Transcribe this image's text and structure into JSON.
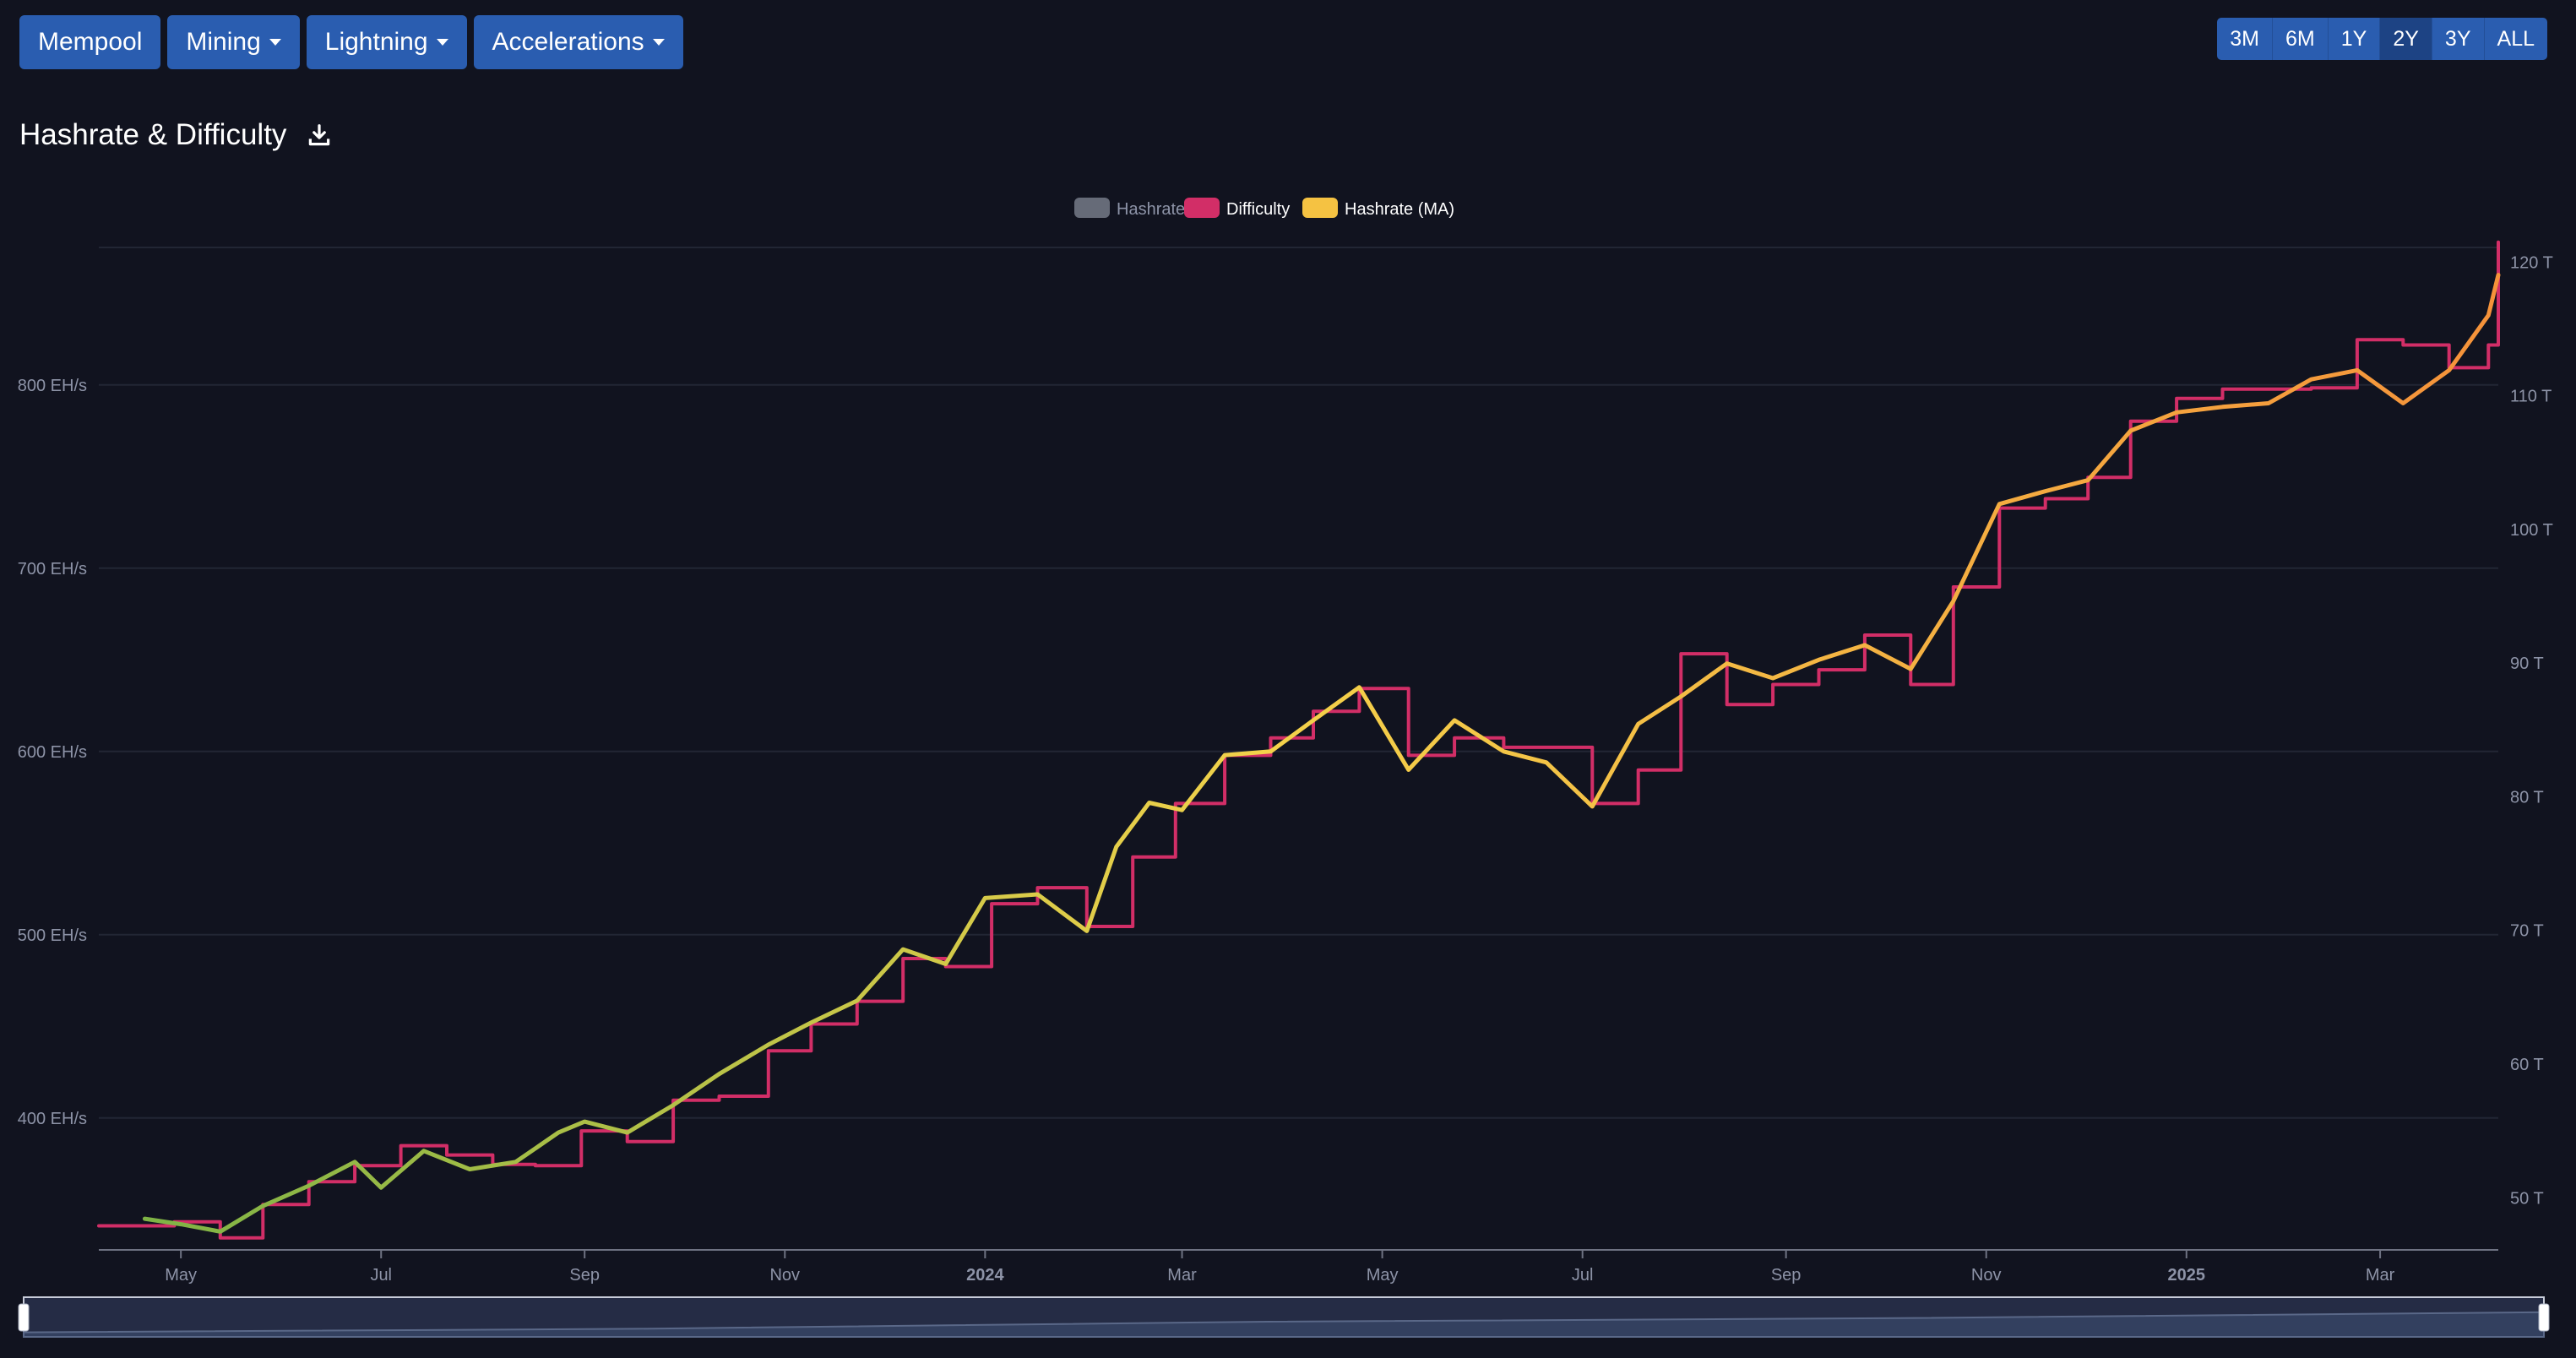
{
  "nav": {
    "mempool": "Mempool",
    "mining": "Mining",
    "lightning": "Lightning",
    "accelerations": "Accelerations"
  },
  "ranges": [
    "3M",
    "6M",
    "1Y",
    "2Y",
    "3Y",
    "ALL"
  ],
  "active_range": "2Y",
  "title": "Hashrate & Difficulty",
  "icons": {
    "download": "download-icon"
  },
  "colors": {
    "hashrate": "#666b78",
    "difficulty": "#d22e67",
    "ma_start": "#7eb345",
    "ma_mid": "#f4d24a",
    "ma_end": "#f5923a",
    "grid": "#222634",
    "button": "#2a5db0"
  },
  "chart_data": {
    "type": "line",
    "legend": {
      "position": "top-center",
      "entries": [
        {
          "name": "Hashrate",
          "visible": false
        },
        {
          "name": "Difficulty",
          "visible": true
        },
        {
          "name": "Hashrate (MA)",
          "visible": true
        }
      ]
    },
    "x_axis": {
      "start": "2023-04-06",
      "end": "2025-04-06",
      "ticks": [
        {
          "date": "2023-05-01",
          "label": "May",
          "bold": false
        },
        {
          "date": "2023-07-01",
          "label": "Jul",
          "bold": false
        },
        {
          "date": "2023-09-01",
          "label": "Sep",
          "bold": false
        },
        {
          "date": "2023-11-01",
          "label": "Nov",
          "bold": false
        },
        {
          "date": "2024-01-01",
          "label": "2024",
          "bold": true
        },
        {
          "date": "2024-03-01",
          "label": "Mar",
          "bold": false
        },
        {
          "date": "2024-05-01",
          "label": "May",
          "bold": false
        },
        {
          "date": "2024-07-01",
          "label": "Jul",
          "bold": false
        },
        {
          "date": "2024-09-01",
          "label": "Sep",
          "bold": false
        },
        {
          "date": "2024-11-01",
          "label": "Nov",
          "bold": false
        },
        {
          "date": "2025-01-01",
          "label": "2025",
          "bold": true
        },
        {
          "date": "2025-03-01",
          "label": "Mar",
          "bold": false
        }
      ]
    },
    "y_left": {
      "unit": "EH/s",
      "range": [
        328,
        875
      ],
      "ticks": [
        {
          "value": 400,
          "label": "400 EH/s"
        },
        {
          "value": 500,
          "label": "500 EH/s"
        },
        {
          "value": 600,
          "label": "600 EH/s"
        },
        {
          "value": 700,
          "label": "700 EH/s"
        },
        {
          "value": 800,
          "label": "800 EH/s"
        }
      ]
    },
    "y_right": {
      "unit": "T",
      "range": [
        46.1,
        121.1
      ],
      "ticks": [
        {
          "value": 50,
          "label": "50 T"
        },
        {
          "value": 60,
          "label": "60 T"
        },
        {
          "value": 70,
          "label": "70 T"
        },
        {
          "value": 80,
          "label": "80 T"
        },
        {
          "value": 90,
          "label": "90 T"
        },
        {
          "value": 100,
          "label": "100 T"
        },
        {
          "value": 110,
          "label": "110 T"
        },
        {
          "value": 120,
          "label": "120 T"
        }
      ]
    },
    "series": [
      {
        "name": "Difficulty",
        "axis": "right",
        "step": true,
        "points": [
          [
            "2023-04-06",
            47.9
          ],
          [
            "2023-04-29",
            48.2
          ],
          [
            "2023-05-13",
            47.0
          ],
          [
            "2023-05-26",
            49.5
          ],
          [
            "2023-06-09",
            51.2
          ],
          [
            "2023-06-23",
            52.4
          ],
          [
            "2023-07-07",
            53.9
          ],
          [
            "2023-07-21",
            53.2
          ],
          [
            "2023-08-04",
            52.5
          ],
          [
            "2023-08-17",
            52.4
          ],
          [
            "2023-08-31",
            55.0
          ],
          [
            "2023-09-14",
            54.2
          ],
          [
            "2023-09-28",
            57.3
          ],
          [
            "2023-10-12",
            57.6
          ],
          [
            "2023-10-27",
            61.0
          ],
          [
            "2023-11-09",
            63.0
          ],
          [
            "2023-11-23",
            64.7
          ],
          [
            "2023-12-07",
            67.9
          ],
          [
            "2023-12-20",
            67.3
          ],
          [
            "2024-01-03",
            72.0
          ],
          [
            "2024-01-17",
            73.2
          ],
          [
            "2024-02-01",
            70.3
          ],
          [
            "2024-02-15",
            75.5
          ],
          [
            "2024-02-28",
            79.5
          ],
          [
            "2024-03-14",
            83.1
          ],
          [
            "2024-03-28",
            84.4
          ],
          [
            "2024-04-10",
            86.4
          ],
          [
            "2024-04-24",
            88.1
          ],
          [
            "2024-05-09",
            83.1
          ],
          [
            "2024-05-23",
            84.4
          ],
          [
            "2024-06-07",
            83.7
          ],
          [
            "2024-06-20",
            83.7
          ],
          [
            "2024-07-04",
            79.5
          ],
          [
            "2024-07-18",
            82.0
          ],
          [
            "2024-07-31",
            90.7
          ],
          [
            "2024-08-14",
            86.9
          ],
          [
            "2024-08-28",
            88.4
          ],
          [
            "2024-09-11",
            89.5
          ],
          [
            "2024-09-25",
            92.1
          ],
          [
            "2024-10-09",
            88.4
          ],
          [
            "2024-10-22",
            95.7
          ],
          [
            "2024-11-05",
            101.6
          ],
          [
            "2024-11-19",
            102.3
          ],
          [
            "2024-12-02",
            103.9
          ],
          [
            "2024-12-15",
            108.1
          ],
          [
            "2024-12-29",
            109.8
          ],
          [
            "2025-01-12",
            110.5
          ],
          [
            "2025-01-26",
            110.5
          ],
          [
            "2025-02-08",
            110.6
          ],
          [
            "2025-02-22",
            114.2
          ],
          [
            "2025-03-08",
            113.8
          ],
          [
            "2025-03-22",
            112.1
          ],
          [
            "2025-04-03",
            113.8
          ],
          [
            "2025-04-06",
            121.5
          ]
        ]
      },
      {
        "name": "Hashrate (MA)",
        "axis": "left",
        "gradient": true,
        "points": [
          [
            "2023-04-20",
            345
          ],
          [
            "2023-05-01",
            342
          ],
          [
            "2023-05-13",
            338
          ],
          [
            "2023-05-26",
            352
          ],
          [
            "2023-06-09",
            363
          ],
          [
            "2023-06-23",
            376
          ],
          [
            "2023-07-01",
            362
          ],
          [
            "2023-07-14",
            382
          ],
          [
            "2023-07-28",
            372
          ],
          [
            "2023-08-11",
            376
          ],
          [
            "2023-08-24",
            392
          ],
          [
            "2023-09-01",
            398
          ],
          [
            "2023-09-14",
            392
          ],
          [
            "2023-09-28",
            407
          ],
          [
            "2023-10-12",
            424
          ],
          [
            "2023-10-27",
            440
          ],
          [
            "2023-11-09",
            452
          ],
          [
            "2023-11-23",
            464
          ],
          [
            "2023-12-07",
            492
          ],
          [
            "2023-12-20",
            484
          ],
          [
            "2024-01-01",
            520
          ],
          [
            "2024-01-17",
            522
          ],
          [
            "2024-02-01",
            502
          ],
          [
            "2024-02-10",
            548
          ],
          [
            "2024-02-20",
            572
          ],
          [
            "2024-03-01",
            568
          ],
          [
            "2024-03-14",
            598
          ],
          [
            "2024-03-28",
            600
          ],
          [
            "2024-04-10",
            617
          ],
          [
            "2024-04-24",
            635
          ],
          [
            "2024-05-09",
            590
          ],
          [
            "2024-05-23",
            617
          ],
          [
            "2024-06-07",
            600
          ],
          [
            "2024-06-20",
            594
          ],
          [
            "2024-07-04",
            570
          ],
          [
            "2024-07-18",
            615
          ],
          [
            "2024-07-31",
            630
          ],
          [
            "2024-08-14",
            648
          ],
          [
            "2024-08-28",
            640
          ],
          [
            "2024-09-11",
            650
          ],
          [
            "2024-09-25",
            658
          ],
          [
            "2024-10-09",
            645
          ],
          [
            "2024-10-22",
            682
          ],
          [
            "2024-11-05",
            735
          ],
          [
            "2024-11-19",
            742
          ],
          [
            "2024-12-02",
            748
          ],
          [
            "2024-12-15",
            775
          ],
          [
            "2024-12-29",
            785
          ],
          [
            "2025-01-12",
            788
          ],
          [
            "2025-01-26",
            790
          ],
          [
            "2025-02-08",
            803
          ],
          [
            "2025-02-22",
            808
          ],
          [
            "2025-03-08",
            790
          ],
          [
            "2025-03-22",
            808
          ],
          [
            "2025-04-03",
            838
          ],
          [
            "2025-04-06",
            860
          ]
        ]
      }
    ],
    "navigator": {
      "type": "area",
      "points": [
        [
          "2023-04-06",
          0.05
        ],
        [
          "2023-10-01",
          0.2
        ],
        [
          "2024-04-01",
          0.5
        ],
        [
          "2024-10-01",
          0.65
        ],
        [
          "2025-04-06",
          0.9
        ]
      ]
    }
  }
}
